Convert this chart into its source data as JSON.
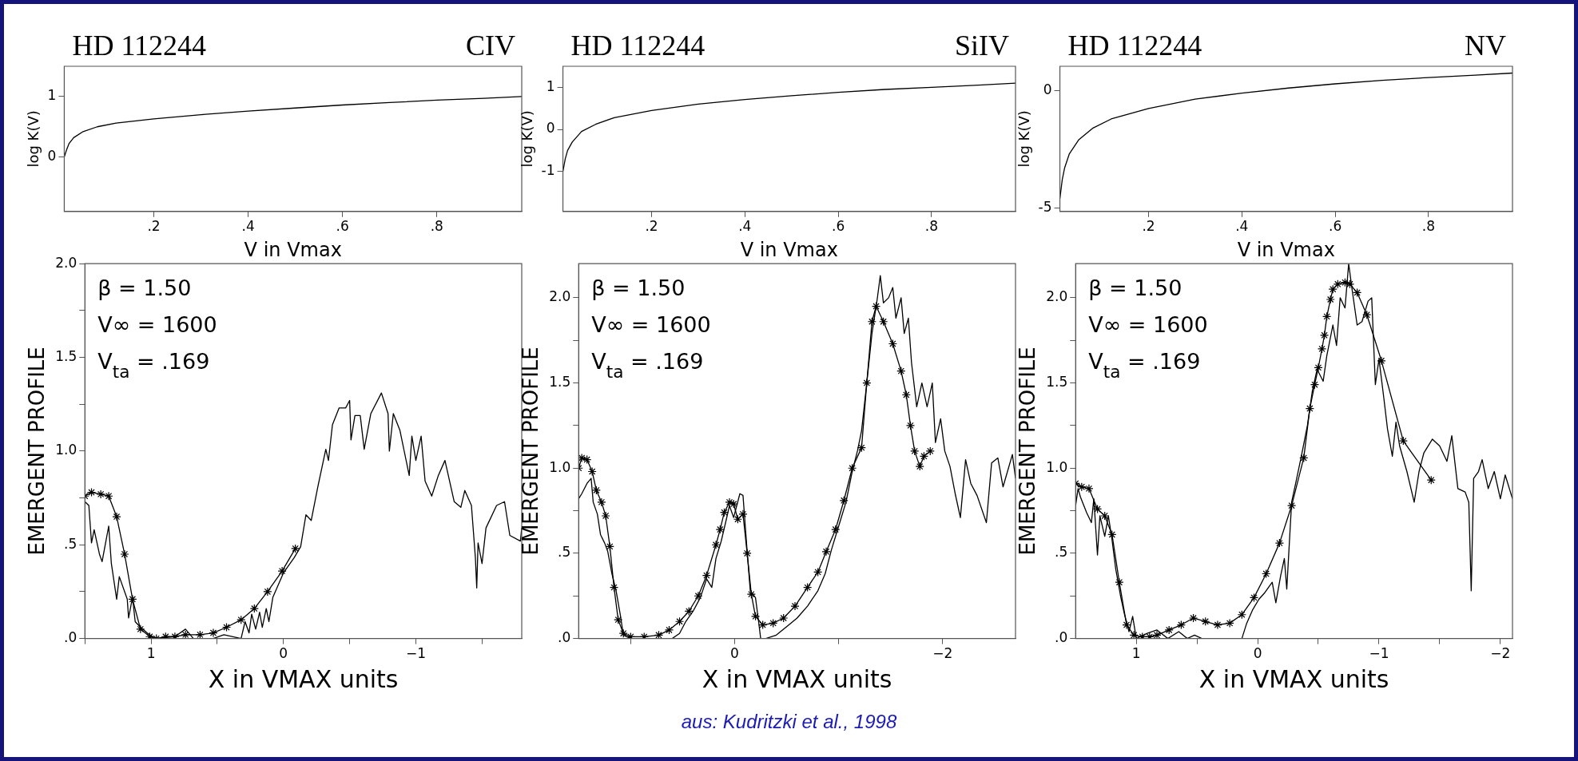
{
  "chart_data": [
    {
      "type": "line",
      "title": "HD 112244",
      "subtitle": "CIV",
      "xlabel": "V in Vmax",
      "ylabel": "log K(V)",
      "xlim": [
        0.01,
        0.98
      ],
      "xticks": [
        {
          "value": 0.2,
          "label": ".2"
        },
        {
          "value": 0.4,
          "label": ".4"
        },
        {
          "value": 0.6,
          "label": ".6"
        },
        {
          "value": 0.8,
          "label": ".8"
        }
      ],
      "ylim": [
        -0.9,
        1.5
      ],
      "yticks": [
        0,
        1
      ],
      "color": "#000000",
      "x": [
        0.01,
        0.015,
        0.02,
        0.03,
        0.05,
        0.08,
        0.12,
        0.2,
        0.3,
        0.4,
        0.5,
        0.6,
        0.7,
        0.8,
        0.9,
        0.98
      ],
      "values": [
        0,
        0.12,
        0.22,
        0.32,
        0.42,
        0.5,
        0.56,
        0.63,
        0.7,
        0.76,
        0.81,
        0.86,
        0.9,
        0.94,
        0.97,
        1.0
      ]
    },
    {
      "type": "line",
      "title": "HD 112244",
      "subtitle": "SiIV",
      "xlabel": "V in Vmax",
      "ylabel": "log K(V)",
      "xlim": [
        0.01,
        0.98
      ],
      "xticks": [
        {
          "value": 0.2,
          "label": ".2"
        },
        {
          "value": 0.4,
          "label": ".4"
        },
        {
          "value": 0.6,
          "label": ".6"
        },
        {
          "value": 0.8,
          "label": ".8"
        }
      ],
      "ylim": [
        -1.95,
        1.5
      ],
      "yticks": [
        -1,
        0,
        1
      ],
      "color": "#000000",
      "x": [
        0.01,
        0.015,
        0.02,
        0.03,
        0.05,
        0.08,
        0.12,
        0.2,
        0.3,
        0.4,
        0.5,
        0.6,
        0.7,
        0.8,
        0.9,
        0.98
      ],
      "values": [
        -1,
        -0.7,
        -0.5,
        -0.3,
        -0.05,
        0.12,
        0.28,
        0.45,
        0.6,
        0.71,
        0.8,
        0.88,
        0.95,
        1.0,
        1.05,
        1.1
      ]
    },
    {
      "type": "line",
      "title": "HD 112244",
      "subtitle": "NV",
      "xlabel": "V in Vmax",
      "ylabel": "log K(V)",
      "xlim": [
        0.01,
        0.98
      ],
      "xticks": [
        {
          "value": 0.2,
          "label": ".2"
        },
        {
          "value": 0.4,
          "label": ".4"
        },
        {
          "value": 0.6,
          "label": ".6"
        },
        {
          "value": 0.8,
          "label": ".8"
        }
      ],
      "ylim": [
        -5.15,
        1.05
      ],
      "yticks": [
        -5,
        0
      ],
      "color": "#000000",
      "x": [
        0.01,
        0.015,
        0.02,
        0.03,
        0.05,
        0.08,
        0.12,
        0.2,
        0.3,
        0.4,
        0.5,
        0.6,
        0.7,
        0.8,
        0.9,
        0.98
      ],
      "values": [
        -4.6,
        -3.8,
        -3.3,
        -2.7,
        -2.1,
        -1.6,
        -1.2,
        -0.75,
        -0.35,
        -0.1,
        0.12,
        0.3,
        0.45,
        0.57,
        0.67,
        0.76
      ]
    },
    {
      "type": "line",
      "xlabel": "X in VMAX units",
      "ylabel": "EMERGENT PROFILE",
      "xlim": [
        1.5,
        -1.8
      ],
      "xticks": [
        {
          "value": 1.5,
          "label": null
        },
        {
          "value": 1,
          "label": "1"
        },
        {
          "value": 0.5,
          "label": null
        },
        {
          "value": 0,
          "label": "0"
        },
        {
          "value": -0.5,
          "label": null
        },
        {
          "value": -1,
          "label": "−1"
        },
        {
          "value": -1.5,
          "label": null
        }
      ],
      "ylim": [
        0,
        2
      ],
      "yticks": [
        {
          "value": 0,
          "label": ".0"
        },
        {
          "value": 0.25,
          "label": null
        },
        {
          "value": 0.5,
          "label": ".5"
        },
        {
          "value": 0.75,
          "label": null
        },
        {
          "value": 1,
          "label": "1.0"
        },
        {
          "value": 1.25,
          "label": null
        },
        {
          "value": 1.5,
          "label": "1.5"
        },
        {
          "value": 1.75,
          "label": null
        },
        {
          "value": 2,
          "label": "2.0"
        }
      ],
      "annotations": [
        "β = 1.50",
        "V∞ = 1600",
        "V$_{ta}$ = .169"
      ],
      "series": [
        {
          "type": "line",
          "color": "#000000",
          "marker": "none",
          "x": [
            1.5,
            1.47,
            1.45,
            1.43,
            1.39,
            1.37,
            1.32,
            1.3,
            1.26,
            1.24,
            1.18,
            1.17,
            1.14,
            1.12,
            1.08,
            1.03,
            0.97,
            0.82,
            0.74,
            0.68,
            0.53,
            0.45,
            0.32,
            0.29,
            0.26,
            0.24,
            0.21,
            0.18,
            0.16,
            0.13,
            0.11,
            0.08,
            0,
            -0.08,
            -0.13,
            -0.17,
            -0.21,
            -0.26,
            -0.32,
            -0.34,
            -0.37,
            -0.42,
            -0.47,
            -0.5,
            -0.51,
            -0.54,
            -0.58,
            -0.61,
            -0.66,
            -0.74,
            -0.79,
            -0.8,
            -0.83,
            -0.88,
            -0.95,
            -0.97,
            -1.0,
            -1.04,
            -1.07,
            -1.12,
            -1.17,
            -1.22,
            -1.29,
            -1.34,
            -1.37,
            -1.42,
            -1.45,
            -1.46,
            -1.47,
            -1.5,
            -1.53,
            -1.61,
            -1.67,
            -1.71,
            -1.79,
            -1.8
          ],
          "values": [
            0.73,
            0.71,
            0.51,
            0.58,
            0.45,
            0.41,
            0.6,
            0.4,
            0.21,
            0.33,
            0.21,
            0.11,
            0.22,
            0.09,
            0.06,
            0.03,
            0,
            0.01,
            0.05,
            0,
            0,
            0.02,
            0,
            0.09,
            0.03,
            0.13,
            0.05,
            0.14,
            0.06,
            0.16,
            0.09,
            0.22,
            0.35,
            0.43,
            0.49,
            0.66,
            0.63,
            0.81,
            1.01,
            0.95,
            1.14,
            1.23,
            1.23,
            1.27,
            1.06,
            1.19,
            1.19,
            1.01,
            1.2,
            1.31,
            1.2,
            1.0,
            1.2,
            1.11,
            0.87,
            1.08,
            0.95,
            1.08,
            0.84,
            0.76,
            0.87,
            0.95,
            0.73,
            0.7,
            0.79,
            0.71,
            0.43,
            0.27,
            0.51,
            0.4,
            0.59,
            0.71,
            0.73,
            0.55,
            0.52,
            0.59
          ]
        },
        {
          "type": "line",
          "color": "#000000",
          "marker": "cross",
          "x": [
            1.5,
            1.45,
            1.38,
            1.32,
            1.26,
            1.2,
            1.14,
            1.08,
            1.01,
            0.96,
            0.89,
            0.82,
            0.74,
            0.63,
            0.53,
            0.43,
            0.32,
            0.22,
            0.12,
            0.01,
            -0.09
          ],
          "values": [
            0.76,
            0.78,
            0.77,
            0.76,
            0.65,
            0.45,
            0.21,
            0.05,
            0.01,
            0,
            0.01,
            0.01,
            0.02,
            0.02,
            0.03,
            0.06,
            0.1,
            0.16,
            0.25,
            0.36,
            0.48
          ]
        }
      ]
    },
    {
      "type": "line",
      "xlabel": "X in VMAX units",
      "ylabel": "EMERGENT PROFILE",
      "xlim": [
        1.5,
        -2.7
      ],
      "xticks": [
        {
          "value": 1,
          "label": null
        },
        {
          "value": 0,
          "label": "0"
        },
        {
          "value": -1,
          "label": null
        },
        {
          "value": -2,
          "label": "−2"
        }
      ],
      "ylim": [
        0,
        2.2
      ],
      "yticks": [
        {
          "value": 0,
          "label": ".0"
        },
        {
          "value": 0.25,
          "label": null
        },
        {
          "value": 0.5,
          "label": ".5"
        },
        {
          "value": 0.75,
          "label": null
        },
        {
          "value": 1,
          "label": "1.0"
        },
        {
          "value": 1.25,
          "label": null
        },
        {
          "value": 1.5,
          "label": "1.5"
        },
        {
          "value": 1.75,
          "label": null
        },
        {
          "value": 2,
          "label": "2.0"
        }
      ],
      "annotations": [
        "β = 1.50",
        "V∞ = 1600",
        "V$_{ta}$ = .169",
        "aus: Kudritzki et al., 1998"
      ],
      "series": [
        {
          "type": "line",
          "color": "#000000",
          "marker": "none",
          "x": [
            1.5,
            1.47,
            1.42,
            1.38,
            1.36,
            1.32,
            1.29,
            1.25,
            1.22,
            1.18,
            1.14,
            1.1,
            1.07,
            1.0,
            0.73,
            0.6,
            0.53,
            0.47,
            0.4,
            0.33,
            0.27,
            0.22,
            0.18,
            0.13,
            0.08,
            0.05,
            0.01,
            -0.05,
            -0.08,
            -0.12,
            -0.15,
            -0.2,
            -0.23,
            -0.25,
            -0.3,
            -0.4,
            -0.5,
            -0.6,
            -0.7,
            -0.8,
            -0.87,
            -0.93,
            -1.0,
            -1.07,
            -1.13,
            -1.18,
            -1.22,
            -1.27,
            -1.32,
            -1.37,
            -1.4,
            -1.43,
            -1.48,
            -1.52,
            -1.55,
            -1.6,
            -1.63,
            -1.67,
            -1.7,
            -1.75,
            -1.8,
            -1.85,
            -1.9,
            -1.93,
            -1.98,
            -2.02,
            -2.07,
            -2.12,
            -2.17,
            -2.22,
            -2.27,
            -2.33,
            -2.42,
            -2.47,
            -2.53,
            -2.58,
            -2.67,
            -2.7
          ],
          "values": [
            0.82,
            0.85,
            0.91,
            0.94,
            0.8,
            0.73,
            0.61,
            0.56,
            0.51,
            0.38,
            0.28,
            0.14,
            0.02,
            0,
            0,
            0,
            0.03,
            0.1,
            0.16,
            0.24,
            0.35,
            0.3,
            0.47,
            0.57,
            0.7,
            0.78,
            0.71,
            0.85,
            0.84,
            0.51,
            0.28,
            0.24,
            0.1,
            0,
            0,
            0.02,
            0.07,
            0.12,
            0.19,
            0.28,
            0.38,
            0.52,
            0.66,
            0.8,
            0.98,
            1.1,
            1.22,
            1.5,
            1.79,
            1.99,
            2.13,
            1.97,
            2.0,
            2.06,
            1.88,
            2.0,
            1.79,
            1.88,
            1.62,
            1.36,
            1.5,
            1.36,
            1.5,
            1.15,
            1.29,
            1.1,
            1.01,
            0.85,
            0.71,
            1.05,
            0.91,
            0.84,
            0.68,
            1.03,
            1.06,
            0.89,
            1.08,
            0.94
          ]
        },
        {
          "type": "line",
          "color": "#000000",
          "marker": "cross",
          "x": [
            1.5,
            1.47,
            1.42,
            1.37,
            1.33,
            1.28,
            1.24,
            1.2,
            1.16,
            1.12,
            1.07,
            1.0,
            0.87,
            0.73,
            0.63,
            0.53,
            0.44,
            0.35,
            0.27,
            0.18,
            0.14,
            0.1,
            0.05,
            0.01,
            -0.03,
            -0.08,
            -0.12,
            -0.16,
            -0.2,
            -0.27,
            -0.37,
            -0.47,
            -0.58,
            -0.7,
            -0.8,
            -0.88,
            -0.97,
            -1.05,
            -1.13,
            -1.22,
            -1.27,
            -1.32,
            -1.36,
            -1.43,
            -1.52,
            -1.6,
            -1.65,
            -1.69,
            -1.73,
            -1.78,
            -1.82,
            -1.88
          ],
          "values": [
            1.0,
            1.06,
            1.05,
            0.98,
            0.87,
            0.8,
            0.72,
            0.54,
            0.3,
            0.11,
            0.03,
            0.01,
            0.01,
            0.02,
            0.05,
            0.1,
            0.16,
            0.25,
            0.37,
            0.55,
            0.64,
            0.74,
            0.8,
            0.79,
            0.7,
            0.73,
            0.5,
            0.26,
            0.13,
            0.08,
            0.09,
            0.12,
            0.19,
            0.3,
            0.39,
            0.51,
            0.64,
            0.81,
            1.0,
            1.12,
            1.5,
            1.86,
            1.95,
            1.86,
            1.73,
            1.57,
            1.43,
            1.25,
            1.1,
            1.01,
            1.07,
            1.1
          ]
        }
      ]
    },
    {
      "type": "line",
      "xlabel": "X in VMAX units",
      "ylabel": "EMERGENT PROFILE",
      "xlim": [
        1.5,
        -2.1
      ],
      "xticks": [
        {
          "value": 1,
          "label": "1"
        },
        {
          "value": 0.5,
          "label": null
        },
        {
          "value": 0,
          "label": "0"
        },
        {
          "value": -0.5,
          "label": null
        },
        {
          "value": -1,
          "label": "−1"
        },
        {
          "value": -1.5,
          "label": null
        },
        {
          "value": -2,
          "label": "−2"
        }
      ],
      "ylim": [
        0,
        2.2
      ],
      "yticks": [
        {
          "value": 0,
          "label": ".0"
        },
        {
          "value": 0.25,
          "label": null
        },
        {
          "value": 0.5,
          "label": ".5"
        },
        {
          "value": 0.75,
          "label": null
        },
        {
          "value": 1,
          "label": "1.0"
        },
        {
          "value": 1.25,
          "label": null
        },
        {
          "value": 1.5,
          "label": "1.5"
        },
        {
          "value": 1.75,
          "label": null
        },
        {
          "value": 2,
          "label": "2.0"
        }
      ],
      "annotations": [
        "β = 1.50",
        "V∞ = 1600",
        "V$_{ta}$ = .169"
      ],
      "series": [
        {
          "type": "line",
          "color": "#000000",
          "marker": "none",
          "x": [
            1.5,
            1.48,
            1.46,
            1.41,
            1.37,
            1.35,
            1.32,
            1.3,
            1.26,
            1.23,
            1.2,
            1.17,
            1.13,
            1.1,
            1.06,
            1.03,
            1.0,
            0.91,
            0.83,
            0.74,
            0.65,
            0.58,
            0.52,
            0.46,
            0.13,
            0.09,
            0.04,
            -0.01,
            -0.06,
            -0.12,
            -0.15,
            -0.19,
            -0.22,
            -0.24,
            -0.28,
            -0.31,
            -0.36,
            -0.41,
            -0.45,
            -0.49,
            -0.54,
            -0.57,
            -0.62,
            -0.65,
            -0.68,
            -0.72,
            -0.75,
            -0.78,
            -0.82,
            -0.86,
            -0.91,
            -0.94,
            -0.97,
            -1.0,
            -1.04,
            -1.07,
            -1.11,
            -1.14,
            -1.17,
            -1.23,
            -1.29,
            -1.33,
            -1.37,
            -1.44,
            -1.5,
            -1.56,
            -1.6,
            -1.65,
            -1.71,
            -1.74,
            -1.76,
            -1.78,
            -1.82,
            -1.85,
            -1.9,
            -1.95,
            -2.0,
            -2.04,
            -2.1
          ],
          "values": [
            0.78,
            0.88,
            0.83,
            0.74,
            0.68,
            0.82,
            0.49,
            0.72,
            0.6,
            0.72,
            0.58,
            0.41,
            0.25,
            0.15,
            0.04,
            0.13,
            0,
            0.03,
            0.05,
            0,
            0.04,
            0,
            0.02,
            0,
            0,
            0.09,
            0.17,
            0.23,
            0.27,
            0.33,
            0.21,
            0.37,
            0.47,
            0.29,
            0.8,
            0.9,
            1.07,
            1.25,
            1.45,
            1.58,
            1.51,
            1.66,
            1.84,
            1.72,
            2.0,
            1.94,
            2.2,
            2.04,
            1.84,
            1.86,
            1.98,
            2.0,
            1.49,
            1.64,
            1.41,
            1.23,
            1.07,
            1.27,
            1.13,
            0.98,
            0.8,
            0.98,
            1.09,
            1.17,
            1.13,
            1.04,
            1.19,
            0.88,
            0.86,
            0.8,
            0.28,
            0.94,
            0.98,
            1.05,
            0.88,
            0.98,
            0.82,
            0.96,
            0.82
          ]
        },
        {
          "type": "line",
          "color": "#000000",
          "marker": "cross",
          "x": [
            1.5,
            1.45,
            1.39,
            1.32,
            1.26,
            1.2,
            1.14,
            1.08,
            1.02,
            0.95,
            0.89,
            0.83,
            0.73,
            0.63,
            0.53,
            0.43,
            0.33,
            0.23,
            0.13,
            0.03,
            -0.07,
            -0.18,
            -0.28,
            -0.38,
            -0.43,
            -0.47,
            -0.5,
            -0.53,
            -0.55,
            -0.57,
            -0.6,
            -0.62,
            -0.66,
            -0.72,
            -0.76,
            -0.82,
            -0.9,
            -1.02,
            -1.2,
            -1.43
          ],
          "values": [
            0.91,
            0.89,
            0.88,
            0.76,
            0.72,
            0.61,
            0.33,
            0.08,
            0.02,
            0.01,
            0.01,
            0.02,
            0.05,
            0.08,
            0.12,
            0.1,
            0.08,
            0.09,
            0.14,
            0.24,
            0.38,
            0.56,
            0.78,
            1.06,
            1.35,
            1.49,
            1.59,
            1.7,
            1.78,
            1.89,
            1.99,
            2.05,
            2.08,
            2.09,
            2.08,
            2.03,
            1.9,
            1.63,
            1.16,
            0.93
          ]
        }
      ]
    }
  ]
}
